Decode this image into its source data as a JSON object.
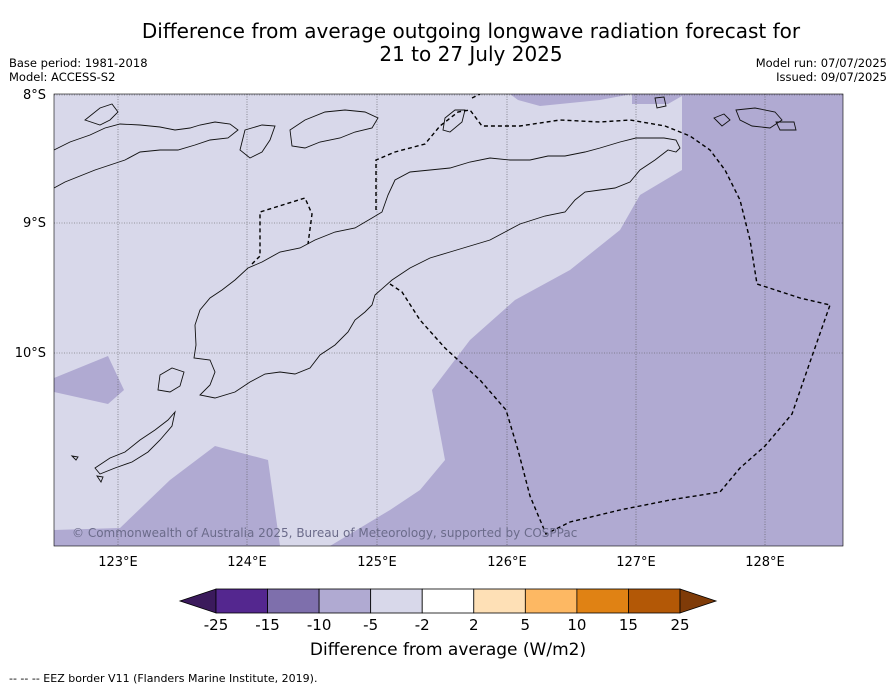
{
  "title_line1": "Difference from average outgoing longwave radiation forecast for",
  "title_line2": "21 to 27 July 2025",
  "base_period": "Base period: 1981-2018",
  "model": "Model: ACCESS-S2",
  "model_run": "Model run: 07/07/2025",
  "issued": "Issued: 09/07/2025",
  "lat_ticks": [
    "8°S",
    "9°S",
    "10°S"
  ],
  "lon_ticks": [
    "123°E",
    "124°E",
    "125°E",
    "126°E",
    "127°E",
    "128°E"
  ],
  "copyright": "© Commonwealth of Australia 2025, Bureau of Meteorology, supported by COSPPac",
  "colorbar": {
    "label": "Difference from average (W/m2)",
    "ticks": [
      "-25",
      "-15",
      "-10",
      "-5",
      "-2",
      "2",
      "5",
      "10",
      "15",
      "25"
    ],
    "colors": [
      "#3b1a5c",
      "#54278f",
      "#7e6fac",
      "#b0aad2",
      "#d8d8ea",
      "#ffffff",
      "#fee0b6",
      "#fdb863",
      "#e08214",
      "#b35806",
      "#7f3b08"
    ]
  },
  "footnote": "--  --  -- EEZ border V11 (Flanders Marine Institute, 2019).",
  "legend_colors": {
    "light_band": "#d8d8ea",
    "mid_band": "#b0aad2"
  }
}
